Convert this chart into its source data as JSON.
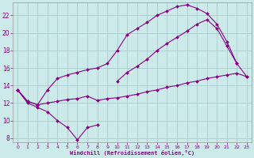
{
  "bg_color": "#cdeaea",
  "grid_color": "#aacccc",
  "line_color": "#880088",
  "xlim": [
    -0.5,
    23.5
  ],
  "ylim": [
    7.5,
    23.5
  ],
  "yticks": [
    8,
    10,
    12,
    14,
    16,
    18,
    20,
    22
  ],
  "xticks": [
    0,
    1,
    2,
    3,
    4,
    5,
    6,
    7,
    8,
    9,
    10,
    11,
    12,
    13,
    14,
    15,
    16,
    17,
    18,
    19,
    20,
    21,
    22,
    23
  ],
  "xlabel": "Windchill (Refroidissement éolien,°C)",
  "series": [
    {
      "x": [
        0,
        1,
        2,
        3,
        4,
        5,
        6,
        7,
        8
      ],
      "y": [
        13.5,
        12.0,
        11.5,
        11.0,
        10.0,
        9.2,
        7.8,
        9.2,
        9.5
      ]
    },
    {
      "x": [
        0,
        1,
        2,
        3,
        4,
        5,
        6,
        7,
        8,
        9,
        10,
        11,
        12,
        13,
        14,
        15,
        16,
        17,
        18,
        19,
        20,
        21,
        22,
        23
      ],
      "y": [
        13.5,
        12.2,
        11.8,
        12.0,
        12.2,
        12.4,
        12.5,
        12.8,
        12.3,
        12.5,
        12.6,
        12.8,
        13.0,
        13.3,
        13.5,
        13.8,
        14.0,
        14.3,
        14.5,
        14.8,
        15.0,
        15.2,
        15.4,
        15.0
      ]
    },
    {
      "x": [
        0,
        1,
        2,
        3,
        4,
        5,
        6,
        7,
        8,
        9,
        10,
        11,
        12,
        13,
        14,
        15,
        16,
        17,
        18,
        19,
        20,
        21,
        22
      ],
      "y": [
        13.5,
        12.2,
        11.8,
        13.5,
        14.8,
        15.2,
        15.5,
        15.8,
        16.0,
        16.5,
        18.0,
        19.8,
        20.5,
        21.2,
        22.0,
        22.5,
        23.0,
        23.2,
        22.8,
        22.2,
        21.0,
        19.0,
        16.5
      ]
    },
    {
      "x": [
        10,
        11,
        12,
        13,
        14,
        15,
        16,
        17,
        18,
        19,
        20,
        21,
        22,
        23
      ],
      "y": [
        14.5,
        15.5,
        16.2,
        17.0,
        18.0,
        18.8,
        19.5,
        20.2,
        21.0,
        21.5,
        20.5,
        18.5,
        16.5,
        15.0
      ]
    }
  ]
}
